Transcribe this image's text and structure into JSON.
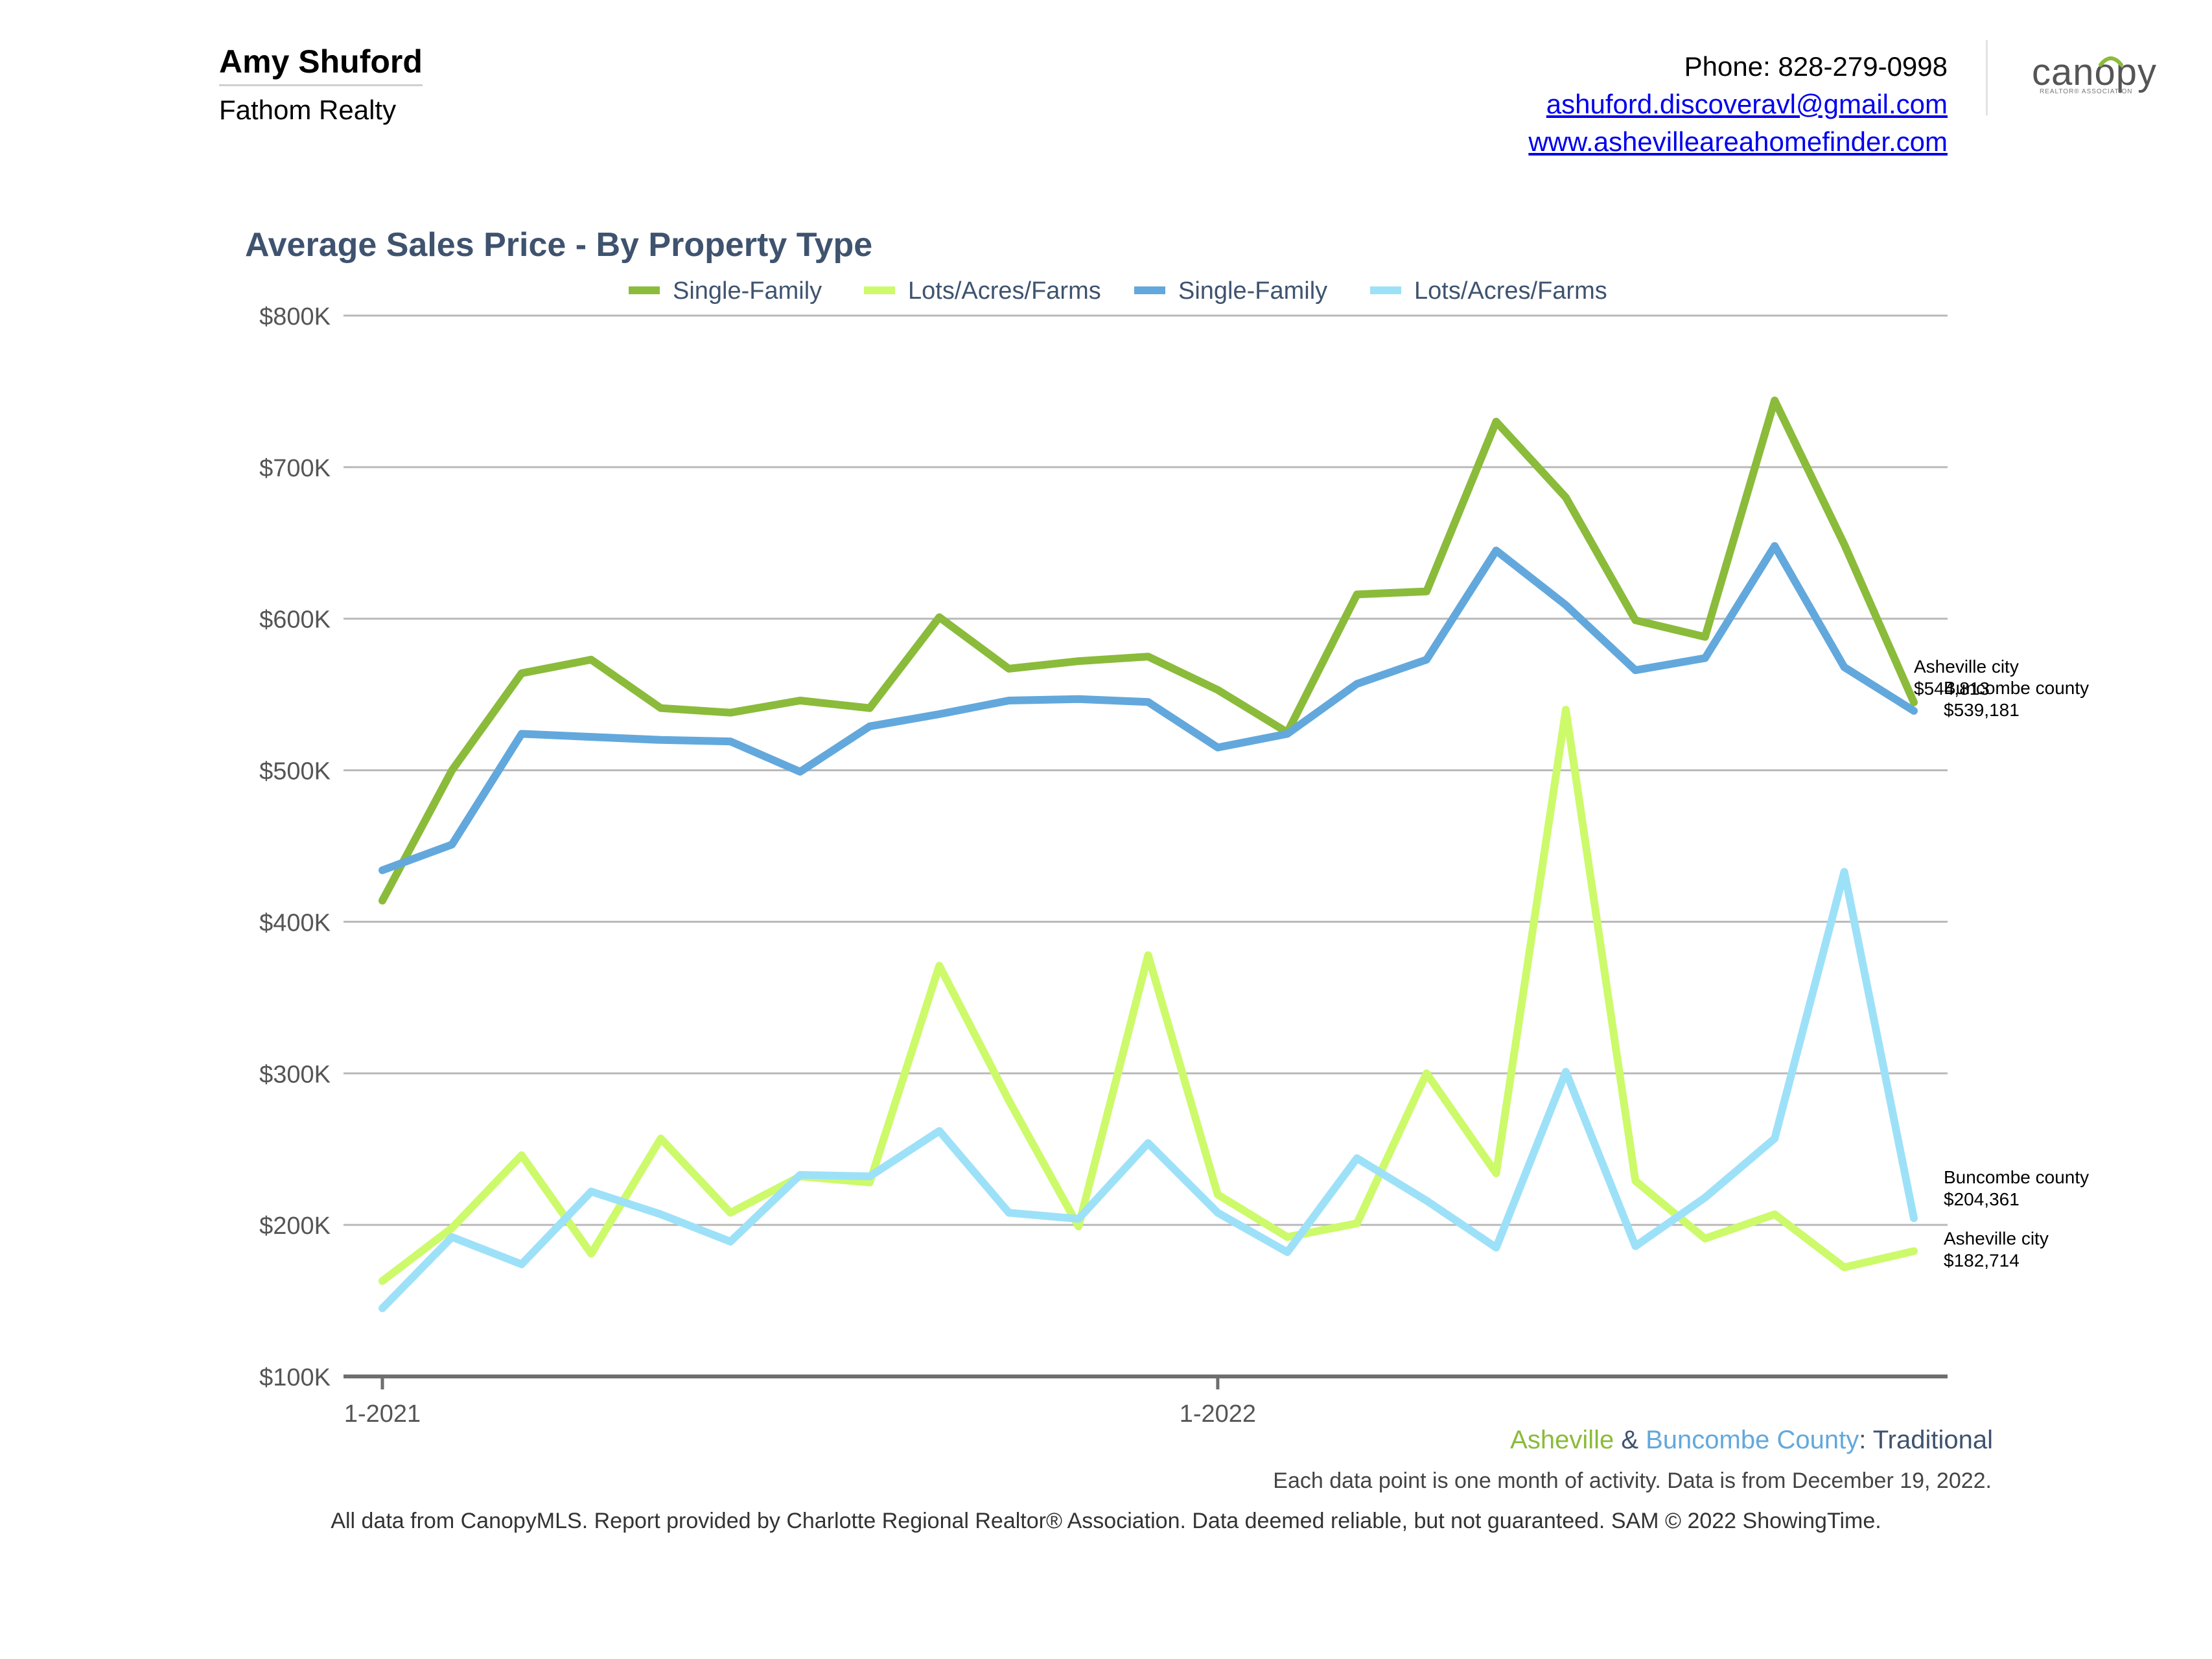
{
  "header": {
    "agent_name": "Amy Shuford",
    "company": "Fathom Realty",
    "phone": "Phone: 828-279-0998",
    "email": "ashuford.discoveravl@gmail.com",
    "website": "www.ashevilleareahomefinder.com",
    "logo_text": "canopy",
    "logo_subtext": "REALTOR® ASSOCIATION"
  },
  "chart_data": {
    "type": "line",
    "title": "Average Sales Price - By Property Type",
    "xlabel": "",
    "ylabel": "",
    "x": [
      "1-2021",
      "2-2021",
      "3-2021",
      "4-2021",
      "5-2021",
      "6-2021",
      "7-2021",
      "8-2021",
      "9-2021",
      "10-2021",
      "11-2021",
      "12-2021",
      "1-2022",
      "2-2022",
      "3-2022",
      "4-2022",
      "5-2022",
      "6-2022",
      "7-2022",
      "8-2022",
      "9-2022",
      "10-2022",
      "11-2022"
    ],
    "x_tick_labels": [
      "1-2021",
      "1-2022"
    ],
    "y_tick_labels": [
      "$100K",
      "$200K",
      "$300K",
      "$400K",
      "$500K",
      "$600K",
      "$700K",
      "$800K"
    ],
    "ylim": [
      100000,
      800000
    ],
    "grid": true,
    "legend_position": "top",
    "series": [
      {
        "name": "Single-Family",
        "color": "#8bbb3a",
        "values": [
          414000,
          500000,
          564000,
          573000,
          541000,
          538000,
          546000,
          541000,
          601000,
          567000,
          572000,
          575000,
          553000,
          525000,
          616000,
          618000,
          730000,
          680000,
          599000,
          588000,
          744000,
          649000,
          544813
        ],
        "end_label": [
          "Asheville city",
          "$544,813"
        ]
      },
      {
        "name": "Lots/Acres/Farms",
        "color": "#cdfa6a",
        "values": [
          163000,
          198000,
          246000,
          181000,
          257000,
          208000,
          232000,
          228000,
          371000,
          282000,
          199000,
          378000,
          220000,
          192000,
          201000,
          300000,
          234000,
          540000,
          229000,
          191000,
          207000,
          172000,
          182714
        ],
        "end_label": [
          "Asheville city",
          "$182,714"
        ]
      },
      {
        "name": "Single-Family",
        "color": "#62a8dc",
        "values": [
          434000,
          451000,
          524000,
          522000,
          520000,
          519000,
          499000,
          529000,
          537000,
          546000,
          547000,
          545000,
          515000,
          524000,
          557000,
          573000,
          645000,
          609000,
          566000,
          574000,
          648000,
          568000,
          539181
        ],
        "end_label": [
          "Buncombe county",
          "$539,181"
        ]
      },
      {
        "name": "Lots/Acres/Farms",
        "color": "#9de1f8",
        "values": [
          145000,
          192000,
          174000,
          222000,
          207000,
          189000,
          233000,
          232000,
          262000,
          208000,
          204000,
          254000,
          208000,
          182000,
          244000,
          216000,
          185000,
          301000,
          186000,
          218000,
          257000,
          433000,
          204361
        ],
        "end_label": [
          "Buncombe county",
          "$204,361"
        ]
      }
    ]
  },
  "footer": {
    "area_asheville": "Asheville",
    "area_amp": " & ",
    "area_buncombe": "Buncombe County",
    "area_rest": ": Traditional",
    "note": "Each data point is one month of activity. Data is from December 19, 2022.",
    "disclaimer": "All data from CanopyMLS. Report provided by Charlotte Regional Realtor® Association. Data deemed reliable, but not guaranteed. SAM © 2022 ShowingTime."
  }
}
